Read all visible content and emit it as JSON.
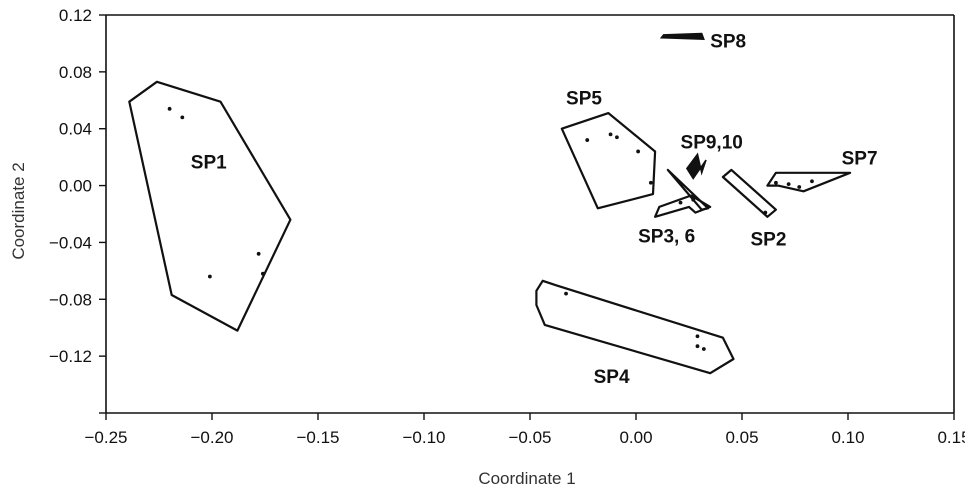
{
  "chart_data": {
    "type": "scatter",
    "title": "",
    "xlabel": "Coordinate 1",
    "ylabel": "Coordinate 2",
    "xlim": [
      -0.25,
      0.15
    ],
    "ylim": [
      -0.16,
      0.12
    ],
    "x_ticks": [
      {
        "value": -0.25,
        "label": "−0.25"
      },
      {
        "value": -0.2,
        "label": "−0.20"
      },
      {
        "value": -0.15,
        "label": "−0.15"
      },
      {
        "value": -0.1,
        "label": "−0.10"
      },
      {
        "value": -0.05,
        "label": "−0.05"
      },
      {
        "value": 0.0,
        "label": "0.00"
      },
      {
        "value": 0.05,
        "label": "0.05"
      },
      {
        "value": 0.1,
        "label": "0.10"
      },
      {
        "value": 0.15,
        "label": "0.15"
      }
    ],
    "y_ticks": [
      {
        "value": 0.12,
        "label": "0.12"
      },
      {
        "value": 0.08,
        "label": "0.08"
      },
      {
        "value": 0.04,
        "label": "0.04"
      },
      {
        "value": 0.0,
        "label": "0.00"
      },
      {
        "value": -0.04,
        "label": "−0.04"
      },
      {
        "value": -0.08,
        "label": "−0.08"
      },
      {
        "value": -0.12,
        "label": "−0.12"
      },
      {
        "value": -0.16,
        "label": ""
      }
    ],
    "grid": false,
    "groups": [
      {
        "label": "SP1",
        "label_pos": [
          -0.21,
          0.012
        ],
        "hull": [
          [
            -0.239,
            0.059
          ],
          [
            -0.226,
            0.073
          ],
          [
            -0.196,
            0.059
          ],
          [
            -0.163,
            -0.024
          ],
          [
            -0.188,
            -0.102
          ],
          [
            -0.219,
            -0.077
          ]
        ],
        "points": [
          [
            -0.22,
            0.054
          ],
          [
            -0.214,
            0.048
          ],
          [
            -0.178,
            -0.048
          ],
          [
            -0.176,
            -0.062
          ],
          [
            -0.201,
            -0.064
          ]
        ]
      },
      {
        "label": "SP5",
        "label_pos": [
          -0.033,
          0.057
        ],
        "hull": [
          [
            -0.035,
            0.04
          ],
          [
            -0.013,
            0.051
          ],
          [
            0.009,
            0.024
          ],
          [
            0.008,
            -0.006
          ],
          [
            -0.018,
            -0.016
          ]
        ],
        "points": [
          [
            -0.023,
            0.032
          ],
          [
            -0.012,
            0.036
          ],
          [
            -0.009,
            0.034
          ],
          [
            0.001,
            0.024
          ],
          [
            0.007,
            0.002
          ]
        ]
      },
      {
        "label": "SP9,10",
        "label_pos": [
          0.021,
          0.026
        ],
        "filled": true,
        "hull": [
          [
            0.024,
            0.012
          ],
          [
            0.029,
            0.022
          ],
          [
            0.031,
            0.009
          ],
          [
            0.033,
            0.018
          ],
          [
            0.027,
            0.005
          ]
        ],
        "points": []
      },
      {
        "label": "SP7",
        "label_pos": [
          0.097,
          0.015
        ],
        "hull": [
          [
            0.062,
            0.0
          ],
          [
            0.066,
            0.009
          ],
          [
            0.101,
            0.009
          ],
          [
            0.079,
            -0.004
          ],
          [
            0.067,
            0.0
          ]
        ],
        "points": [
          [
            0.066,
            0.002
          ],
          [
            0.072,
            0.001
          ],
          [
            0.077,
            -0.001
          ],
          [
            0.083,
            0.003
          ]
        ]
      },
      {
        "label": "SP2",
        "label_pos": [
          0.054,
          -0.042
        ],
        "hull": [
          [
            0.041,
            0.006
          ],
          [
            0.045,
            0.011
          ],
          [
            0.066,
            -0.017
          ],
          [
            0.062,
            -0.022
          ]
        ],
        "points": [
          [
            0.061,
            -0.019
          ]
        ]
      },
      {
        "label": "SP3, 6",
        "label_pos": [
          0.001,
          -0.04
        ],
        "hull": [
          [
            0.009,
            -0.022
          ],
          [
            0.011,
            -0.015
          ],
          [
            0.026,
            -0.007
          ],
          [
            0.035,
            -0.015
          ],
          [
            0.028,
            -0.019
          ],
          [
            0.025,
            -0.015
          ]
        ],
        "points": [
          [
            0.021,
            -0.012
          ],
          [
            0.027,
            -0.01
          ]
        ],
        "hull2": [
          [
            0.015,
            0.011
          ],
          [
            0.034,
            -0.016
          ],
          [
            0.031,
            -0.017
          ]
        ]
      },
      {
        "label": "SP8",
        "label_pos": [
          0.035,
          0.097
        ],
        "filled": true,
        "hull": [
          [
            0.012,
            0.104
          ],
          [
            0.032,
            0.103
          ],
          [
            0.031,
            0.107
          ],
          [
            0.013,
            0.106
          ]
        ],
        "points": []
      },
      {
        "label": "SP4",
        "label_pos": [
          -0.02,
          -0.139
        ],
        "hull": [
          [
            -0.047,
            -0.074
          ],
          [
            -0.044,
            -0.067
          ],
          [
            -0.038,
            -0.07
          ],
          [
            0.041,
            -0.107
          ],
          [
            0.046,
            -0.122
          ],
          [
            0.035,
            -0.132
          ],
          [
            -0.043,
            -0.098
          ],
          [
            -0.047,
            -0.084
          ]
        ],
        "points": [
          [
            -0.033,
            -0.076
          ],
          [
            0.029,
            -0.106
          ],
          [
            0.029,
            -0.113
          ],
          [
            0.032,
            -0.115
          ]
        ]
      }
    ]
  }
}
